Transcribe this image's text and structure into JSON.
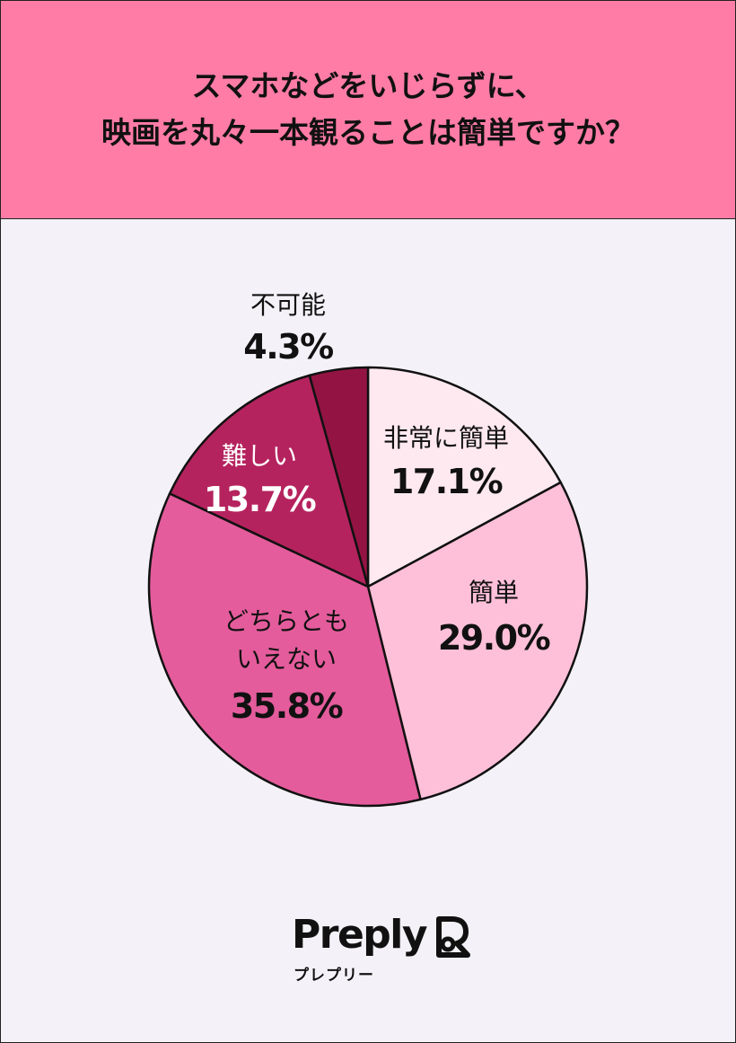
{
  "title_lines": [
    "スマホなどをいじらずに、",
    "映画を丸々一本観ることは簡単ですか？"
  ],
  "colors": {
    "header": "#ff7ca7",
    "background": "#f4f2f8",
    "slice_colors": [
      "#ffe9f0",
      "#fec0d8",
      "#e45c9c",
      "#b5235e",
      "#931442"
    ]
  },
  "chart_data": {
    "type": "pie",
    "start_angle_deg": 0,
    "direction": "clockwise",
    "slices": [
      {
        "label_lines": [
          "非常に簡単"
        ],
        "value": 17.1,
        "value_text": "17.1%"
      },
      {
        "label_lines": [
          "簡単"
        ],
        "value": 29.0,
        "value_text": "29.0%"
      },
      {
        "label_lines": [
          "どちらとも",
          "いえない"
        ],
        "value": 35.8,
        "value_text": "35.8%"
      },
      {
        "label_lines": [
          "難しい"
        ],
        "value": 13.7,
        "value_text": "13.7%"
      },
      {
        "label_lines": [
          "不可能"
        ],
        "value": 4.3,
        "value_text": "4.3%"
      }
    ]
  },
  "brand": {
    "name": "Preply",
    "name_kana": "プレプリー"
  }
}
